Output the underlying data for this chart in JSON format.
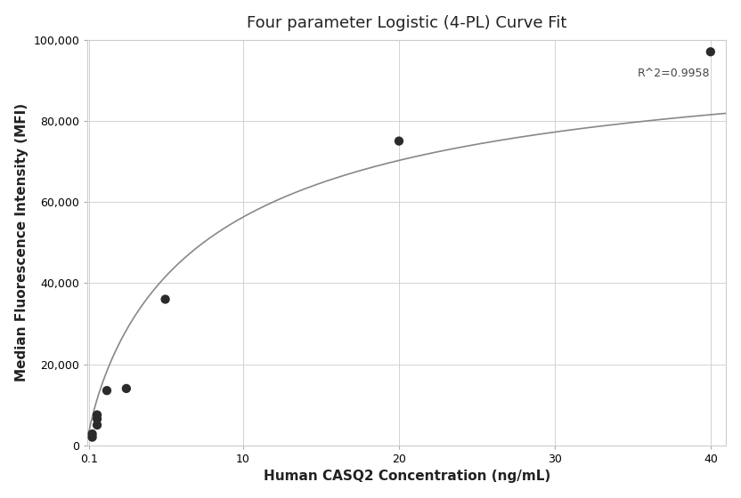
{
  "title": "Four parameter Logistic (4-PL) Curve Fit",
  "xlabel": "Human CASQ2 Concentration (ng/mL)",
  "ylabel": "Median Fluorescence Intensity (MFI)",
  "scatter_x": [
    0.313,
    0.313,
    0.625,
    0.625,
    0.625,
    1.25,
    2.5,
    5.0,
    20.0,
    40.0
  ],
  "scatter_y": [
    2000,
    2800,
    5000,
    6500,
    7500,
    13500,
    14000,
    36000,
    75000,
    97000
  ],
  "r_squared": "R^2=0.9958",
  "xmin": 0.0,
  "xmax": 41,
  "ymin": 0,
  "ymax": 100000,
  "yticks": [
    0,
    20000,
    40000,
    60000,
    80000,
    100000
  ],
  "ytick_labels": [
    "0",
    "20,000",
    "40,000",
    "60,000",
    "80,000",
    "100,000"
  ],
  "xticks": [
    0.1,
    10,
    20,
    30,
    40
  ],
  "xtick_labels": [
    "0.1",
    "10",
    "20",
    "30",
    "40"
  ],
  "scatter_color": "#2b2b2b",
  "line_color": "#888888",
  "background_color": "#ffffff",
  "grid_color": "#cccccc",
  "title_fontsize": 13,
  "label_fontsize": 11,
  "annotation_fontsize": 9,
  "curve_x_min": 0.05,
  "curve_x_max": 41,
  "4pl_a": 1000,
  "4pl_b": 0.85,
  "4pl_c": 8.0,
  "4pl_d": 102000
}
